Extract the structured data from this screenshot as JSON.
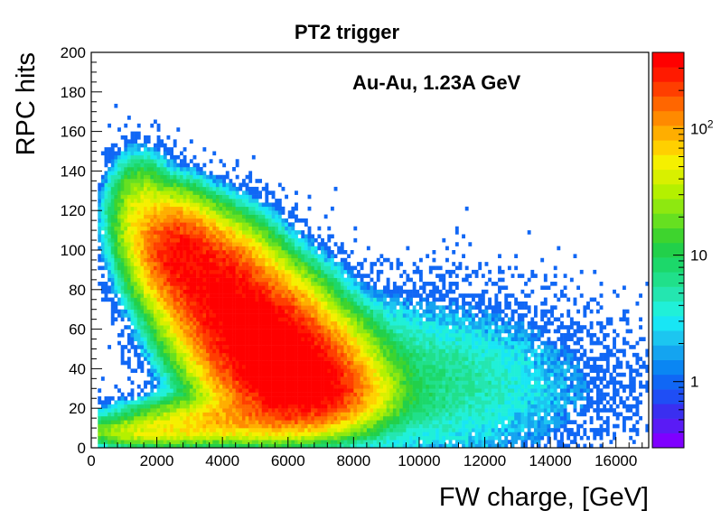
{
  "chart_data": {
    "type": "heatmap",
    "title": "PT2 trigger",
    "annotation": "Au-Au, 1.23A GeV",
    "xlabel": "FW charge, [GeV]",
    "ylabel": "RPC hits",
    "xlim": [
      0,
      17000
    ],
    "ylim": [
      0,
      200
    ],
    "x_ticks": [
      "0",
      "2000",
      "4000",
      "6000",
      "8000",
      "10000",
      "12000",
      "14000",
      "16000"
    ],
    "y_ticks": [
      "0",
      "20",
      "40",
      "60",
      "80",
      "100",
      "120",
      "140",
      "160",
      "180",
      "200"
    ],
    "colorbar": {
      "scale": "log",
      "range": [
        0.3,
        400
      ],
      "tick_labels": [
        {
          "base": "1",
          "exp": ""
        },
        {
          "base": "10",
          "exp": ""
        },
        {
          "base": "10",
          "exp": "2"
        }
      ],
      "tick_values": [
        1,
        10,
        100
      ],
      "colors": [
        "#7f00ff",
        "#5a1bf5",
        "#3a2ff0",
        "#1f4ef5",
        "#1067f5",
        "#0a86f3",
        "#14a4f0",
        "#1cc6f0",
        "#18e6f5",
        "#20f0d8",
        "#24e6b0",
        "#20e08a",
        "#1cd86a",
        "#22d04a",
        "#3ed42e",
        "#66e020",
        "#8ee810",
        "#b4f000",
        "#d8f000",
        "#f5f000",
        "#ffd000",
        "#ffae00",
        "#ff8a00",
        "#ff6600",
        "#ff3e00",
        "#ff1a00",
        "#ff0000"
      ]
    },
    "density_components": [
      {
        "cx": 2600,
        "cy": 100,
        "sx": 650,
        "sy": 13,
        "amp": 260
      },
      {
        "cx": 3800,
        "cy": 82,
        "sx": 850,
        "sy": 15,
        "amp": 330
      },
      {
        "cx": 5000,
        "cy": 60,
        "sx": 1000,
        "sy": 15,
        "amp": 400
      },
      {
        "cx": 6000,
        "cy": 42,
        "sx": 1100,
        "sy": 13,
        "amp": 420
      },
      {
        "cx": 6600,
        "cy": 28,
        "sx": 1100,
        "sy": 9,
        "amp": 300
      },
      {
        "cx": 4500,
        "cy": 14,
        "sx": 1600,
        "sy": 6,
        "amp": 80
      },
      {
        "cx": 1800,
        "cy": 8,
        "sx": 1200,
        "sy": 4,
        "amp": 40
      },
      {
        "cx": 1500,
        "cy": 118,
        "sx": 500,
        "sy": 14,
        "amp": 40
      },
      {
        "cx": 9000,
        "cy": 35,
        "sx": 2600,
        "sy": 22,
        "amp": 6
      },
      {
        "cx": 11500,
        "cy": 28,
        "sx": 2800,
        "sy": 22,
        "amp": 2
      }
    ],
    "bins": {
      "nx": 170,
      "ny": 100
    }
  }
}
